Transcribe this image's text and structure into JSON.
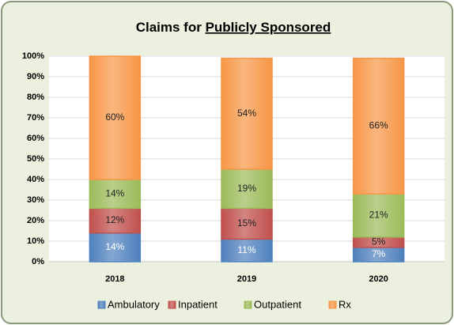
{
  "chart_data": {
    "type": "stacked_bar",
    "title": "Claims for",
    "title_emphasis": "Publicly Sponsored",
    "categories": [
      "2018",
      "2019",
      "2020"
    ],
    "series": [
      {
        "name": "Ambulatory",
        "color": "#4f81bd",
        "values": [
          14,
          11,
          7
        ],
        "value_labels": [
          "14%",
          "11%",
          "7%"
        ]
      },
      {
        "name": "Inpatient",
        "color": "#c0504d",
        "values": [
          12,
          15,
          5
        ],
        "value_labels": [
          "12%",
          "15%",
          "5%"
        ]
      },
      {
        "name": "Outpatient",
        "color": "#9bbb59",
        "values": [
          14,
          19,
          21
        ],
        "value_labels": [
          "14%",
          "19%",
          "21%"
        ]
      },
      {
        "name": "Rx",
        "color": "#f79646",
        "values": [
          60,
          54,
          66
        ],
        "value_labels": [
          "60%",
          "54%",
          "66%"
        ]
      }
    ],
    "ylim": [
      0,
      100
    ],
    "yticks": [
      {
        "value": 0,
        "label": "0%"
      },
      {
        "value": 10,
        "label": "10%"
      },
      {
        "value": 20,
        "label": "20%"
      },
      {
        "value": 30,
        "label": "30%"
      },
      {
        "value": 40,
        "label": "40%"
      },
      {
        "value": 50,
        "label": "50%"
      },
      {
        "value": 60,
        "label": "60%"
      },
      {
        "value": 70,
        "label": "70%"
      },
      {
        "value": 80,
        "label": "80%"
      },
      {
        "value": 90,
        "label": "90%"
      },
      {
        "value": 100,
        "label": "100%"
      }
    ],
    "grid": true,
    "legend": "bottom"
  }
}
